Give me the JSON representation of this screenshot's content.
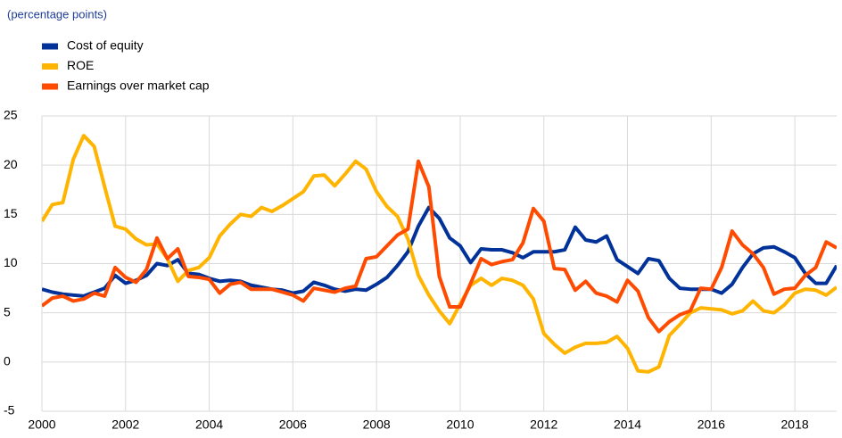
{
  "chart_data": {
    "type": "line",
    "subtitle": "(percentage points)",
    "x": [
      2000,
      2000.25,
      2000.5,
      2000.75,
      2001,
      2001.25,
      2001.5,
      2001.75,
      2002,
      2002.25,
      2002.5,
      2002.75,
      2003,
      2003.25,
      2003.5,
      2003.75,
      2004,
      2004.25,
      2004.5,
      2004.75,
      2005,
      2005.25,
      2005.5,
      2005.75,
      2006,
      2006.25,
      2006.5,
      2006.75,
      2007,
      2007.25,
      2007.5,
      2007.75,
      2008,
      2008.25,
      2008.5,
      2008.75,
      2009,
      2009.25,
      2009.5,
      2009.75,
      2010,
      2010.25,
      2010.5,
      2010.75,
      2011,
      2011.25,
      2011.5,
      2011.75,
      2012,
      2012.25,
      2012.5,
      2012.75,
      2013,
      2013.25,
      2013.5,
      2013.75,
      2014,
      2014.25,
      2014.5,
      2014.75,
      2015,
      2015.25,
      2015.5,
      2015.75,
      2016,
      2016.25,
      2016.5,
      2016.75,
      2017,
      2017.25,
      2017.5,
      2017.75,
      2018,
      2018.25,
      2018.5,
      2018.75,
      2019
    ],
    "series": [
      {
        "name": "Cost of equity",
        "color": "#003299",
        "values": [
          7.4,
          7.1,
          6.9,
          6.8,
          6.7,
          7.1,
          7.5,
          8.8,
          8.0,
          8.3,
          8.8,
          10.0,
          9.8,
          10.4,
          9.0,
          8.9,
          8.5,
          8.2,
          8.3,
          8.2,
          7.8,
          7.6,
          7.4,
          7.3,
          7.0,
          7.2,
          8.1,
          7.8,
          7.4,
          7.2,
          7.4,
          7.3,
          7.9,
          8.6,
          9.8,
          11.2,
          13.8,
          15.7,
          14.6,
          12.6,
          11.8,
          10.1,
          11.5,
          11.4,
          11.4,
          11.1,
          10.6,
          11.2,
          11.2,
          11.2,
          11.4,
          13.7,
          12.4,
          12.2,
          12.8,
          10.4,
          9.7,
          9.0,
          10.5,
          10.3,
          8.5,
          7.5,
          7.4,
          7.4,
          7.4,
          7.0,
          7.9,
          9.6,
          11.0,
          11.6,
          11.7,
          11.2,
          10.6,
          9.0,
          8.0,
          8.0,
          9.8
        ]
      },
      {
        "name": "ROE",
        "color": "#ffb400",
        "values": [
          14.3,
          16.0,
          16.2,
          20.6,
          23.0,
          21.9,
          17.8,
          13.8,
          13.5,
          12.5,
          11.9,
          12.0,
          10.5,
          8.2,
          9.3,
          9.6,
          10.6,
          12.8,
          14.0,
          15.0,
          14.8,
          15.7,
          15.3,
          15.9,
          16.6,
          17.3,
          18.9,
          19.0,
          17.9,
          19.1,
          20.4,
          19.6,
          17.3,
          15.8,
          14.8,
          12.5,
          8.8,
          6.8,
          5.2,
          3.9,
          5.9,
          7.8,
          8.5,
          7.8,
          8.5,
          8.3,
          7.8,
          6.4,
          2.9,
          1.8,
          0.9,
          1.5,
          1.9,
          1.9,
          2.0,
          2.6,
          1.4,
          -0.9,
          -1.0,
          -0.5,
          2.7,
          3.8,
          5.0,
          5.5,
          5.4,
          5.3,
          4.9,
          5.2,
          6.2,
          5.2,
          5.0,
          5.8,
          7.0,
          7.4,
          7.3,
          6.8,
          7.6
        ]
      },
      {
        "name": "Earnings over market cap",
        "color": "#ff4b00",
        "values": [
          5.7,
          6.5,
          6.7,
          6.2,
          6.4,
          7.0,
          6.7,
          9.6,
          8.6,
          8.1,
          9.4,
          12.6,
          10.5,
          11.5,
          8.7,
          8.6,
          8.4,
          7.0,
          7.9,
          8.1,
          7.4,
          7.4,
          7.4,
          7.1,
          6.8,
          6.2,
          7.5,
          7.3,
          7.1,
          7.5,
          7.7,
          10.5,
          10.7,
          11.8,
          12.9,
          13.5,
          20.4,
          17.8,
          8.7,
          5.6,
          5.6,
          8.0,
          10.5,
          9.9,
          10.2,
          10.4,
          12.1,
          15.6,
          14.3,
          9.5,
          9.4,
          7.3,
          8.2,
          7.0,
          6.7,
          6.1,
          8.3,
          7.2,
          4.5,
          3.1,
          4.1,
          4.8,
          5.2,
          7.5,
          7.4,
          9.6,
          13.3,
          11.9,
          11.0,
          9.6,
          6.9,
          7.4,
          7.5,
          8.8,
          9.6,
          12.2,
          11.6
        ]
      }
    ],
    "xlim": [
      2000,
      2019
    ],
    "xticks": [
      2000,
      2002,
      2004,
      2006,
      2008,
      2010,
      2012,
      2014,
      2016,
      2018
    ],
    "ylim": [
      -5,
      25
    ],
    "yticks": [
      -5,
      0,
      5,
      10,
      15,
      20,
      25
    ],
    "grid": true,
    "legend": "top-left"
  }
}
